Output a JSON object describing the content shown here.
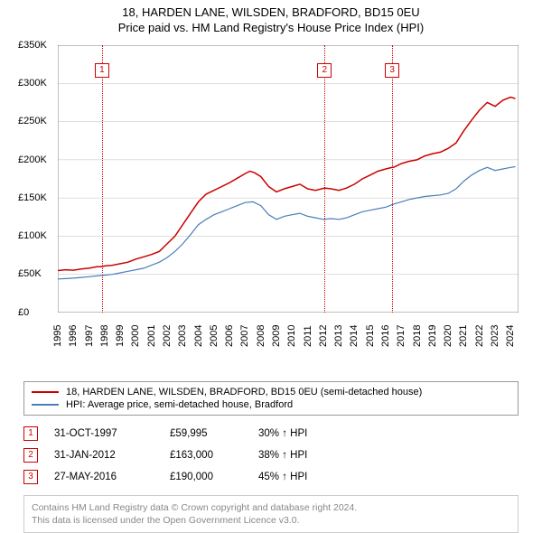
{
  "title_line1": "18, HARDEN LANE, WILSDEN, BRADFORD, BD15 0EU",
  "title_line2": "Price paid vs. HM Land Registry's House Price Index (HPI)",
  "chart": {
    "type": "line",
    "background_color": "#ffffff",
    "grid_color": "#cccccc",
    "axis_color": "#666666",
    "ylim": [
      0,
      350000
    ],
    "ytick_step": 50000,
    "yticks": [
      "£0",
      "£50K",
      "£100K",
      "£150K",
      "£200K",
      "£250K",
      "£300K",
      "£350K"
    ],
    "x_start_year": 1995,
    "x_end_year": 2024.5,
    "xticks": [
      "1995",
      "1996",
      "1997",
      "1998",
      "1999",
      "2000",
      "2001",
      "2002",
      "2003",
      "2004",
      "2005",
      "2006",
      "2007",
      "2008",
      "2009",
      "2010",
      "2011",
      "2012",
      "2013",
      "2014",
      "2015",
      "2016",
      "2017",
      "2018",
      "2019",
      "2020",
      "2021",
      "2022",
      "2023",
      "2024"
    ],
    "series": [
      {
        "name": "price_paid",
        "color": "#cc0000",
        "line_width": 1.5,
        "points": [
          [
            1995.0,
            55000
          ],
          [
            1995.5,
            56000
          ],
          [
            1996.0,
            55500
          ],
          [
            1996.5,
            57000
          ],
          [
            1997.0,
            58000
          ],
          [
            1997.5,
            60000
          ],
          [
            1997.83,
            59995
          ],
          [
            1998.0,
            61000
          ],
          [
            1998.5,
            62000
          ],
          [
            1999.0,
            64000
          ],
          [
            1999.5,
            66000
          ],
          [
            2000.0,
            70000
          ],
          [
            2000.5,
            73000
          ],
          [
            2001.0,
            76000
          ],
          [
            2001.5,
            80000
          ],
          [
            2002.0,
            90000
          ],
          [
            2002.5,
            100000
          ],
          [
            2003.0,
            115000
          ],
          [
            2003.5,
            130000
          ],
          [
            2004.0,
            145000
          ],
          [
            2004.5,
            155000
          ],
          [
            2005.0,
            160000
          ],
          [
            2005.5,
            165000
          ],
          [
            2006.0,
            170000
          ],
          [
            2006.5,
            176000
          ],
          [
            2007.0,
            182000
          ],
          [
            2007.3,
            185000
          ],
          [
            2007.6,
            183000
          ],
          [
            2008.0,
            178000
          ],
          [
            2008.5,
            165000
          ],
          [
            2009.0,
            158000
          ],
          [
            2009.5,
            162000
          ],
          [
            2010.0,
            165000
          ],
          [
            2010.5,
            168000
          ],
          [
            2011.0,
            162000
          ],
          [
            2011.5,
            160000
          ],
          [
            2012.08,
            163000
          ],
          [
            2012.5,
            162000
          ],
          [
            2013.0,
            160000
          ],
          [
            2013.5,
            163000
          ],
          [
            2014.0,
            168000
          ],
          [
            2014.5,
            175000
          ],
          [
            2015.0,
            180000
          ],
          [
            2015.5,
            185000
          ],
          [
            2016.0,
            188000
          ],
          [
            2016.41,
            190000
          ],
          [
            2016.5,
            190000
          ],
          [
            2017.0,
            195000
          ],
          [
            2017.5,
            198000
          ],
          [
            2018.0,
            200000
          ],
          [
            2018.5,
            205000
          ],
          [
            2019.0,
            208000
          ],
          [
            2019.5,
            210000
          ],
          [
            2020.0,
            215000
          ],
          [
            2020.5,
            222000
          ],
          [
            2021.0,
            238000
          ],
          [
            2021.5,
            252000
          ],
          [
            2022.0,
            265000
          ],
          [
            2022.5,
            275000
          ],
          [
            2023.0,
            270000
          ],
          [
            2023.5,
            278000
          ],
          [
            2024.0,
            282000
          ],
          [
            2024.3,
            280000
          ]
        ]
      },
      {
        "name": "hpi",
        "color": "#4a7ebb",
        "line_width": 1.2,
        "points": [
          [
            1995.0,
            44000
          ],
          [
            1995.5,
            44500
          ],
          [
            1996.0,
            45000
          ],
          [
            1996.5,
            46000
          ],
          [
            1997.0,
            47000
          ],
          [
            1997.5,
            48000
          ],
          [
            1998.0,
            49000
          ],
          [
            1998.5,
            50000
          ],
          [
            1999.0,
            52000
          ],
          [
            1999.5,
            54000
          ],
          [
            2000.0,
            56000
          ],
          [
            2000.5,
            58000
          ],
          [
            2001.0,
            62000
          ],
          [
            2001.5,
            66000
          ],
          [
            2002.0,
            72000
          ],
          [
            2002.5,
            80000
          ],
          [
            2003.0,
            90000
          ],
          [
            2003.5,
            102000
          ],
          [
            2004.0,
            115000
          ],
          [
            2004.5,
            122000
          ],
          [
            2005.0,
            128000
          ],
          [
            2005.5,
            132000
          ],
          [
            2006.0,
            136000
          ],
          [
            2006.5,
            140000
          ],
          [
            2007.0,
            144000
          ],
          [
            2007.5,
            145000
          ],
          [
            2008.0,
            140000
          ],
          [
            2008.5,
            128000
          ],
          [
            2009.0,
            122000
          ],
          [
            2009.5,
            126000
          ],
          [
            2010.0,
            128000
          ],
          [
            2010.5,
            130000
          ],
          [
            2011.0,
            126000
          ],
          [
            2011.5,
            124000
          ],
          [
            2012.0,
            122000
          ],
          [
            2012.5,
            123000
          ],
          [
            2013.0,
            122000
          ],
          [
            2013.5,
            124000
          ],
          [
            2014.0,
            128000
          ],
          [
            2014.5,
            132000
          ],
          [
            2015.0,
            134000
          ],
          [
            2015.5,
            136000
          ],
          [
            2016.0,
            138000
          ],
          [
            2016.5,
            142000
          ],
          [
            2017.0,
            145000
          ],
          [
            2017.5,
            148000
          ],
          [
            2018.0,
            150000
          ],
          [
            2018.5,
            152000
          ],
          [
            2019.0,
            153000
          ],
          [
            2019.5,
            154000
          ],
          [
            2020.0,
            156000
          ],
          [
            2020.5,
            162000
          ],
          [
            2021.0,
            172000
          ],
          [
            2021.5,
            180000
          ],
          [
            2022.0,
            186000
          ],
          [
            2022.5,
            190000
          ],
          [
            2023.0,
            186000
          ],
          [
            2023.5,
            188000
          ],
          [
            2024.0,
            190000
          ],
          [
            2024.3,
            191000
          ]
        ]
      }
    ],
    "markers": [
      {
        "label": "1",
        "year": 1997.83
      },
      {
        "label": "2",
        "year": 2012.08
      },
      {
        "label": "3",
        "year": 2016.41
      }
    ],
    "marker_line_color": "#cc0000",
    "marker_box_border": "#cc0000",
    "marker_box_text": "#cc0000",
    "label_fontsize": 11
  },
  "legend": {
    "items": [
      {
        "color": "#cc0000",
        "text": "18, HARDEN LANE, WILSDEN, BRADFORD, BD15 0EU (semi-detached house)"
      },
      {
        "color": "#4a7ebb",
        "text": "HPI: Average price, semi-detached house, Bradford"
      }
    ]
  },
  "sales": [
    {
      "label": "1",
      "date": "31-OCT-1997",
      "price": "£59,995",
      "hpi": "30% ↑ HPI"
    },
    {
      "label": "2",
      "date": "31-JAN-2012",
      "price": "£163,000",
      "hpi": "38% ↑ HPI"
    },
    {
      "label": "3",
      "date": "27-MAY-2016",
      "price": "£190,000",
      "hpi": "45% ↑ HPI"
    }
  ],
  "footer_line1": "Contains HM Land Registry data © Crown copyright and database right 2024.",
  "footer_line2": "This data is licensed under the Open Government Licence v3.0."
}
